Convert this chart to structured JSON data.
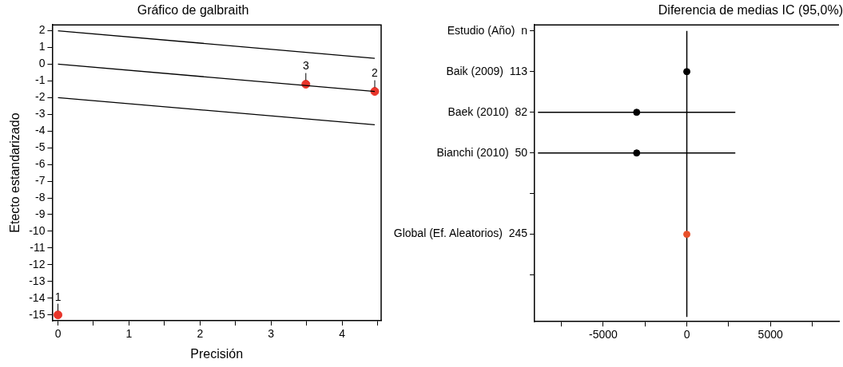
{
  "chart_data": [
    {
      "type": "scatter",
      "title": "Gráfico de galbraith",
      "xlabel": "Precisión",
      "ylabel": "Etecto estandarizado",
      "xlim": [
        -0.08,
        4.55
      ],
      "ylim": [
        -15.35,
        2.35
      ],
      "xticks": [
        0,
        {
          "value": 0.5,
          "label": null
        },
        1,
        {
          "value": 1.5,
          "label": null
        },
        2,
        {
          "value": 2.5,
          "label": null
        },
        3,
        {
          "value": 3.5,
          "label": null
        },
        4,
        {
          "value": 4.5,
          "label": null
        }
      ],
      "yticks": [
        2,
        1,
        0,
        -1,
        -2,
        -3,
        -4,
        -5,
        -6,
        -7,
        -8,
        -9,
        -10,
        -11,
        -12,
        -13,
        -14,
        -15
      ],
      "grid": false,
      "legend": false,
      "marker": "circle",
      "series": [
        {
          "type": "line",
          "color": "#000000",
          "x": [
            0,
            4.46
          ],
          "values": [
            2,
            0.35
          ],
          "marker": "none",
          "line_style": "solid"
        },
        {
          "type": "line",
          "color": "#000000",
          "x": [
            0,
            4.46
          ],
          "values": [
            0,
            -1.63
          ],
          "marker": "none",
          "line_style": "solid"
        },
        {
          "type": "line",
          "color": "#000000",
          "x": [
            0,
            4.46
          ],
          "values": [
            -2,
            -3.63
          ],
          "marker": "none",
          "line_style": "solid"
        },
        {
          "type": "scatter",
          "color": "#e8352a",
          "x": [
            0,
            4.46,
            3.49
          ],
          "values": [
            -15,
            -1.63,
            -1.2
          ]
        }
      ],
      "annotations": [
        {
          "text": "1",
          "x": 0,
          "y": -15
        },
        {
          "text": "2",
          "x": 4.46,
          "y": -1.63
        },
        {
          "text": "3",
          "x": 3.49,
          "y": -1.2
        }
      ]
    },
    {
      "type": "scatter",
      "orientation": "horizontal",
      "title": "Diferencia de medias IC (95,0%)",
      "categories": [
        "Estudio (Año)  n",
        "Baik (2009)  113",
        "Baek (2010)  82",
        "Bianchi (2010)  50",
        null,
        "Global (Ef. Aleatorios)  245",
        null
      ],
      "xlim": [
        -9100,
        9100
      ],
      "xticks": [
        {
          "value": -7500,
          "label": null
        },
        -5000,
        {
          "value": -2500,
          "label": null
        },
        0,
        {
          "value": 2500,
          "label": null
        },
        5000,
        {
          "value": 7500,
          "label": null
        }
      ],
      "grid": false,
      "legend": false,
      "marker": "circle",
      "series": [
        {
          "color": "#000000",
          "values": [
            null,
            0,
            -3000,
            -3000,
            null,
            null,
            null
          ],
          "errors": [
            null,
            null,
            [
              -8900,
              2900
            ],
            [
              -8900,
              2900
            ],
            null,
            null,
            null
          ]
        },
        {
          "color": "#e8502a",
          "values": [
            null,
            null,
            null,
            null,
            null,
            0,
            null
          ]
        }
      ],
      "ref_lines": [
        {
          "axis": "x",
          "value": 0,
          "color": "#000000"
        }
      ]
    }
  ]
}
